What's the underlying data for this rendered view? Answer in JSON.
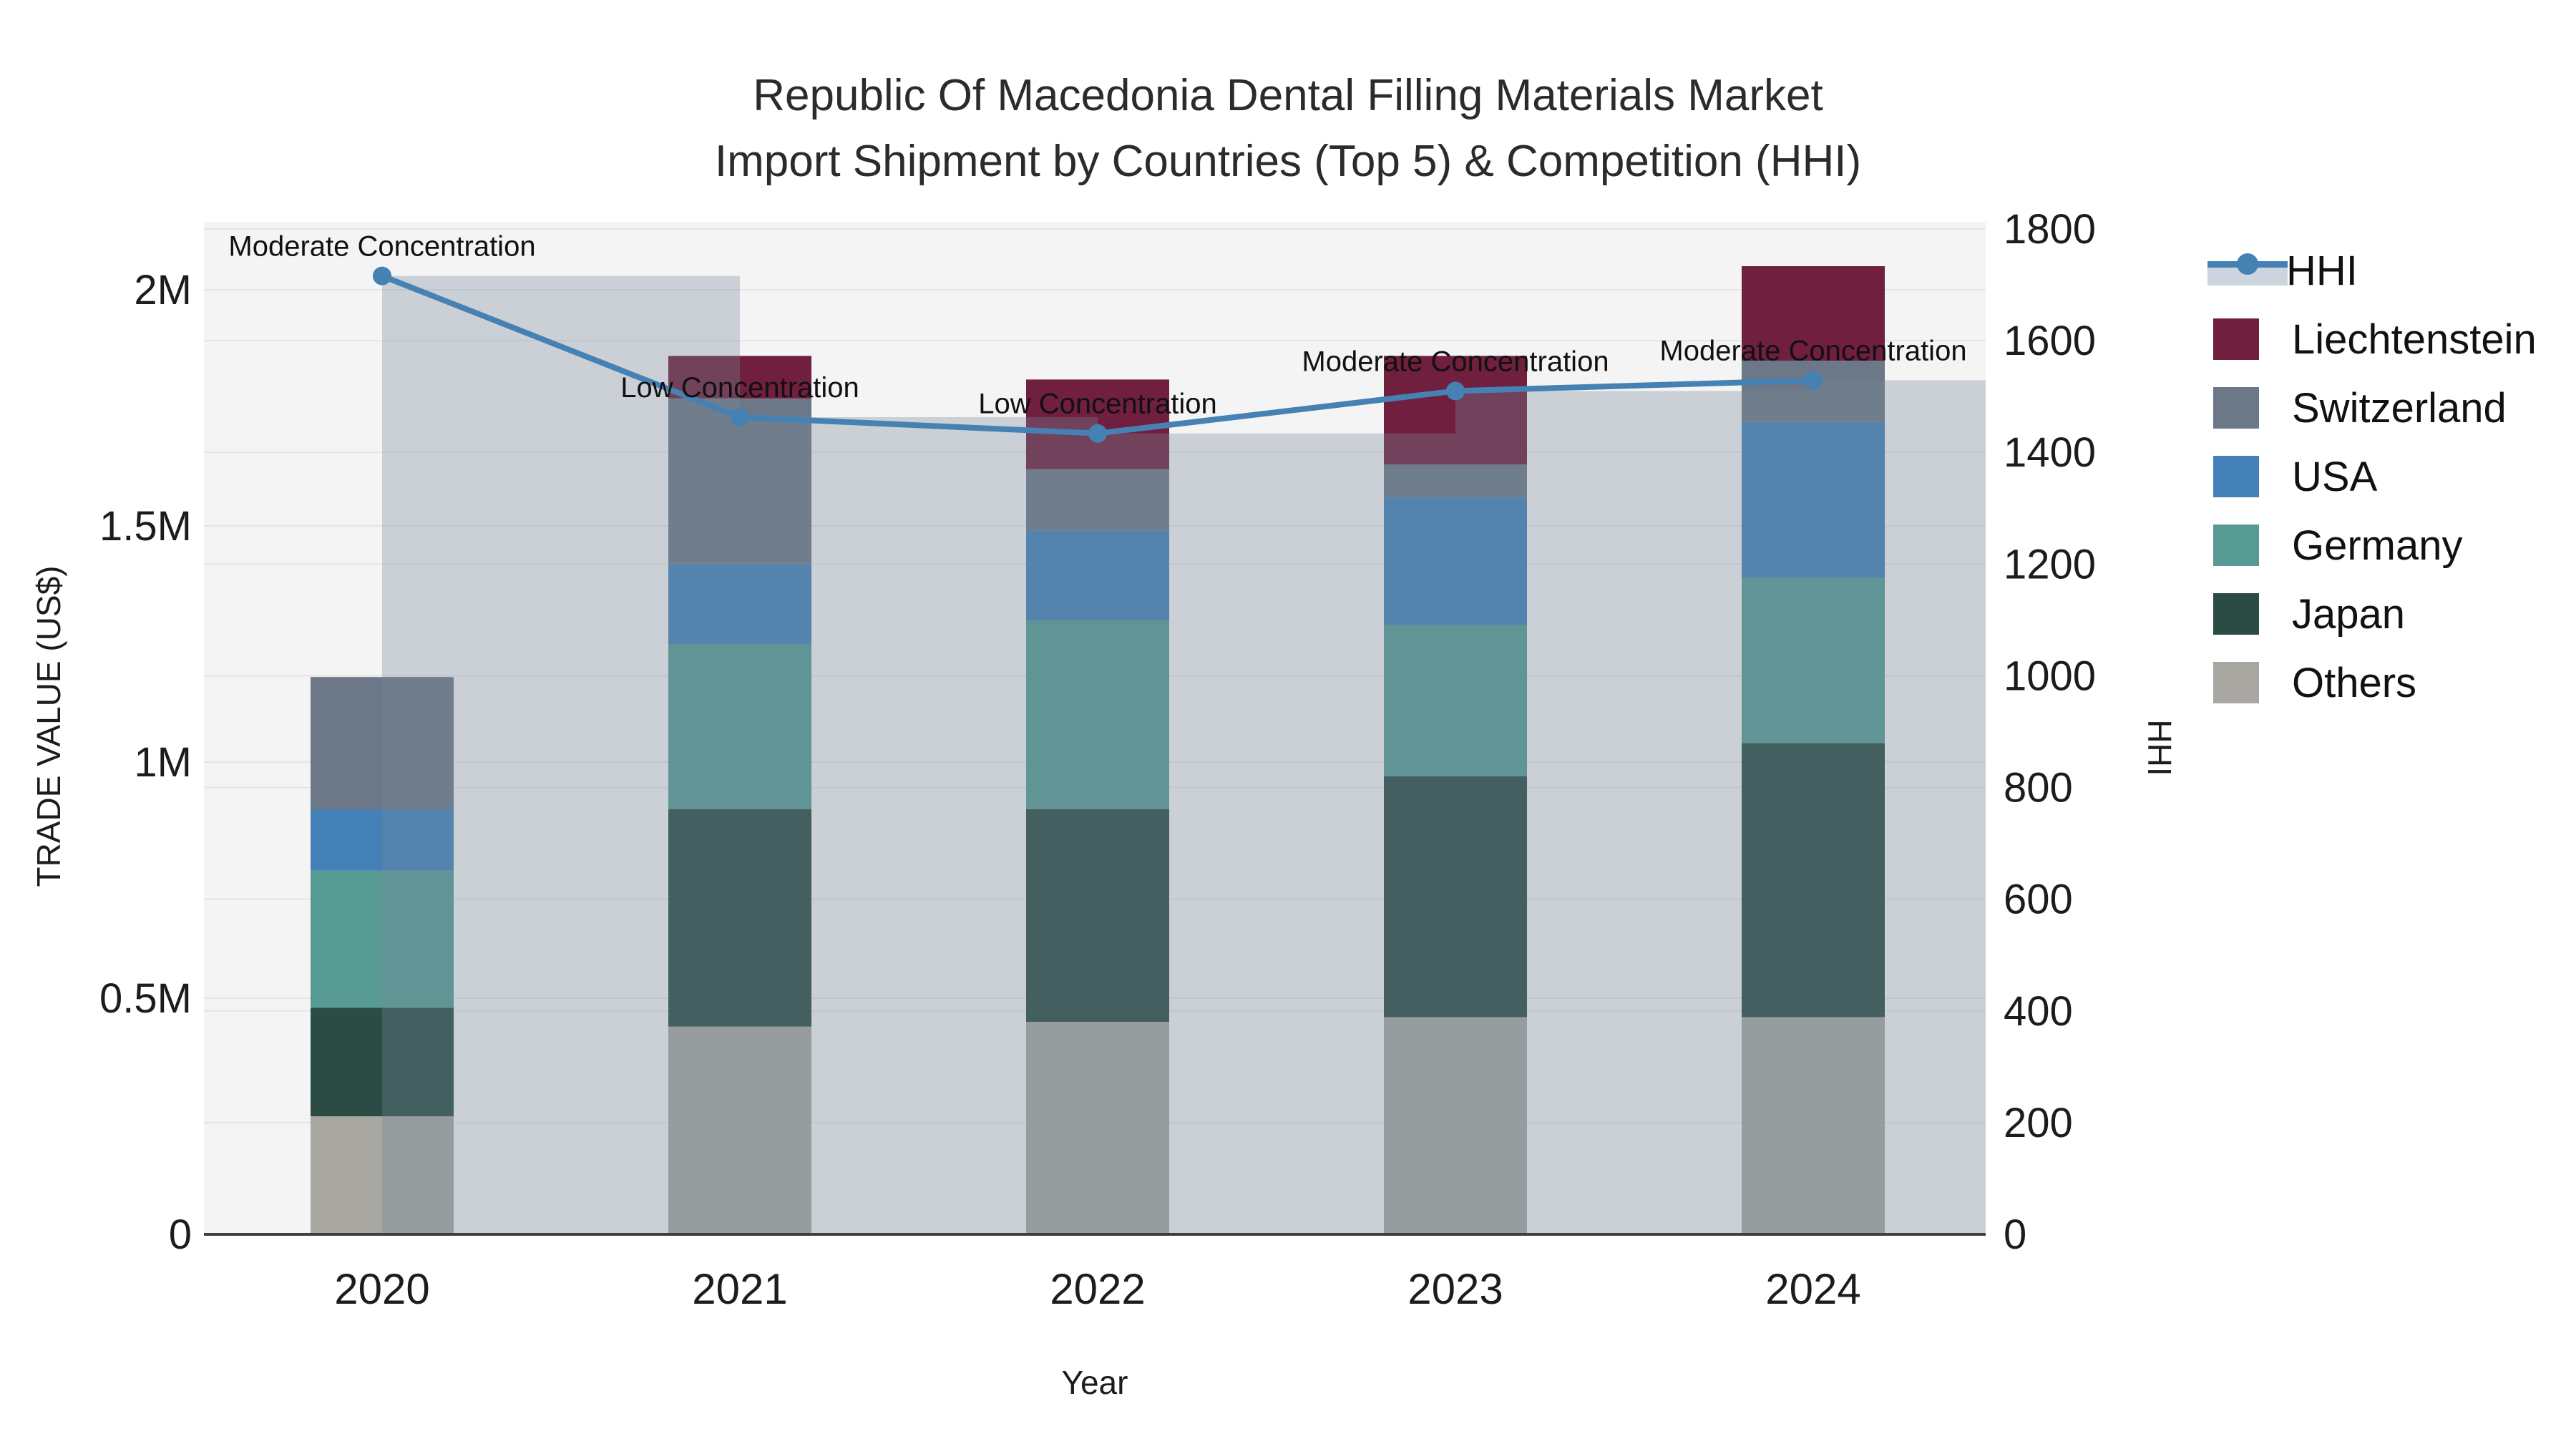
{
  "title": {
    "line1": "Republic Of Macedonia Dental Filling Materials Market",
    "line2": "Import Shipment by Countries (Top 5) & Competition (HHI)"
  },
  "chart_data": {
    "type": "bar+line",
    "categories": [
      "2020",
      "2021",
      "2022",
      "2023",
      "2024"
    ],
    "stack_order_bottom_to_top": [
      "Others",
      "Japan",
      "Germany",
      "USA",
      "Switzerland",
      "Liechtenstein"
    ],
    "series": [
      {
        "name": "Liechtenstein",
        "color": "#701f3e",
        "values_musd": [
          0,
          0.09,
          0.19,
          0.23,
          0.2
        ]
      },
      {
        "name": "Switzerland",
        "color": "#6c7888",
        "values_musd": [
          0.28,
          0.35,
          0.13,
          0.07,
          0.13
        ]
      },
      {
        "name": "USA",
        "color": "#4480b8",
        "values_musd": [
          0.13,
          0.17,
          0.19,
          0.27,
          0.33
        ]
      },
      {
        "name": "Germany",
        "color": "#579a94",
        "values_musd": [
          0.29,
          0.35,
          0.4,
          0.32,
          0.35
        ]
      },
      {
        "name": "Japan",
        "color": "#2b4b45",
        "values_musd": [
          0.23,
          0.46,
          0.45,
          0.51,
          0.58
        ]
      },
      {
        "name": "Others",
        "color": "#a8a7a2",
        "values_musd": [
          0.25,
          0.44,
          0.45,
          0.46,
          0.46
        ]
      }
    ],
    "totals_musd": [
      1.18,
      1.86,
      1.81,
      1.86,
      2.05
    ],
    "hhi": {
      "name": "HHI",
      "color": "#4681b4",
      "band_color": "rgba(119,136,153,0.33)",
      "values": [
        1716,
        1463,
        1434,
        1510,
        1529
      ],
      "annotations": [
        "Moderate Concentration",
        "Low Concentration",
        "Low Concentration",
        "Moderate Concentration",
        "Moderate Concentration"
      ]
    },
    "axes": {
      "x_label": "Year",
      "y_left_label": "TRADE VALUE (US$)",
      "y_right_label": "HHI",
      "y_left_ticks": [
        {
          "v": 0,
          "label": "0"
        },
        {
          "v": 0.5,
          "label": "0.5M"
        },
        {
          "v": 1,
          "label": "1M"
        },
        {
          "v": 1.5,
          "label": "1.5M"
        },
        {
          "v": 2,
          "label": "2M"
        }
      ],
      "y_right_ticks": [
        0,
        200,
        400,
        600,
        800,
        1000,
        1200,
        1400,
        1600,
        1800
      ],
      "y_left_max_musd": 2.14,
      "y_right_max": 1847,
      "grid": true
    },
    "legend_order": [
      "HHI",
      "Liechtenstein",
      "Switzerland",
      "USA",
      "Germany",
      "Japan",
      "Others"
    ],
    "legend_position": "right"
  },
  "colors": {
    "background": "#ffffff",
    "plot_background": "#f4f4f4",
    "gridline": "#e3e5e6",
    "axis_line": "#3f3f3f",
    "text": "#1c1c1c"
  }
}
